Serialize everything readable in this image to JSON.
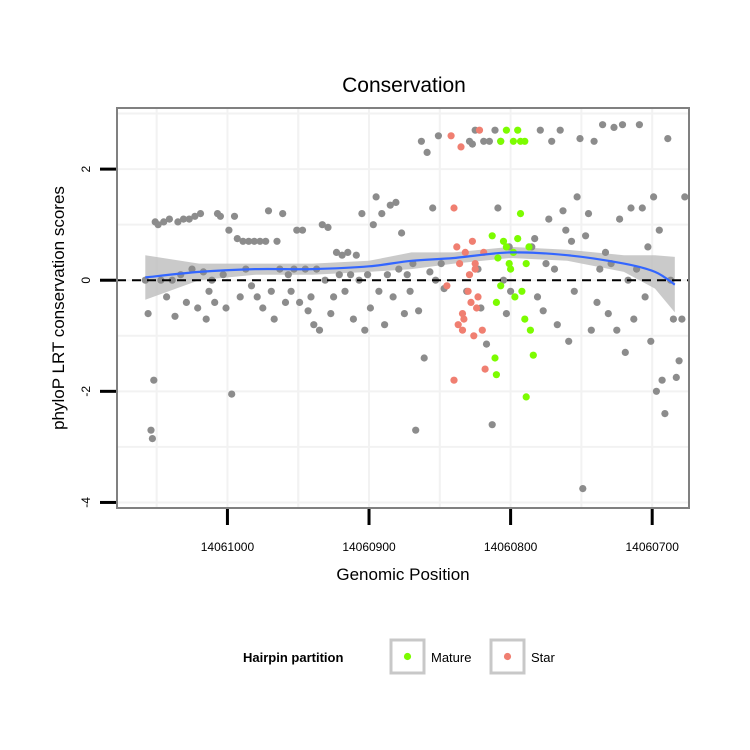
{
  "chart_data": {
    "type": "scatter",
    "title": "Conservation",
    "xlabel": "Genomic Position",
    "ylabel": "phyloP LRT conservation scores",
    "x_reversed": true,
    "xlim": [
      14061078,
      14060674
    ],
    "ylim": [
      -4.1,
      3.1
    ],
    "x_ticks": [
      14061000,
      14060900,
      14060800,
      14060700
    ],
    "y_ticks": [
      -4,
      -2,
      0,
      2
    ],
    "reference_line_y": 0,
    "legend": {
      "title": "Hairpin partition",
      "entries": [
        {
          "label": "Mature",
          "color": "#7cfc00"
        },
        {
          "label": "Star",
          "color": "#f07f71"
        }
      ]
    },
    "colors": {
      "other": "#8c8c8c",
      "Mature": "#7cfc00",
      "Star": "#f07f71",
      "smooth": "#3366ff",
      "ribbon": "#bdbdbd",
      "panel_border": "#808080"
    },
    "series": [
      {
        "name": "Mature",
        "points": [
          [
            14060813,
            0.8
          ],
          [
            14060810,
            -0.4
          ],
          [
            14060809,
            0.4
          ],
          [
            14060807,
            -0.1
          ],
          [
            14060805,
            0.7
          ],
          [
            14060803,
            0.6
          ],
          [
            14060801,
            0.3
          ],
          [
            14060800,
            0.2
          ],
          [
            14060798,
            0.5
          ],
          [
            14060797,
            -0.3
          ],
          [
            14060795,
            0.75
          ],
          [
            14060793,
            1.2
          ],
          [
            14060792,
            -0.2
          ],
          [
            14060790,
            -0.7
          ],
          [
            14060789,
            0.3
          ],
          [
            14060787,
            0.6
          ],
          [
            14060786,
            -0.9
          ],
          [
            14060784,
            -1.35
          ],
          [
            14060811,
            -1.4
          ],
          [
            14060810,
            -1.7
          ],
          [
            14060789,
            -2.1
          ],
          [
            14060803,
            2.7
          ],
          [
            14060798,
            2.5
          ],
          [
            14060795,
            2.7
          ],
          [
            14060793,
            2.5
          ],
          [
            14060807,
            2.5
          ],
          [
            14060790,
            2.5
          ]
        ]
      },
      {
        "name": "Star",
        "points": [
          [
            14060842,
            2.6
          ],
          [
            14060840,
            1.3
          ],
          [
            14060838,
            0.6
          ],
          [
            14060836,
            0.3
          ],
          [
            14060835,
            2.4
          ],
          [
            14060834,
            -0.9
          ],
          [
            14060833,
            -0.7
          ],
          [
            14060832,
            0.5
          ],
          [
            14060830,
            -0.2
          ],
          [
            14060829,
            0.1
          ],
          [
            14060828,
            -0.4
          ],
          [
            14060827,
            0.7
          ],
          [
            14060826,
            -1.0
          ],
          [
            14060825,
            0.3
          ],
          [
            14060824,
            -0.5
          ],
          [
            14060823,
            -0.3
          ],
          [
            14060822,
            2.7
          ],
          [
            14060820,
            -0.9
          ],
          [
            14060819,
            0.5
          ],
          [
            14060818,
            -1.6
          ],
          [
            14060840,
            -1.8
          ],
          [
            14060845,
            -0.1
          ],
          [
            14060834,
            -0.6
          ],
          [
            14060837,
            -0.8
          ],
          [
            14060825,
            0.2
          ]
        ]
      },
      {
        "name": "Other",
        "points": [
          [
            14061058,
            0.0
          ],
          [
            14061056,
            -0.6
          ],
          [
            14061054,
            -2.7
          ],
          [
            14061053,
            -2.85
          ],
          [
            14061052,
            -1.8
          ],
          [
            14061051,
            1.05
          ],
          [
            14061049,
            1.0
          ],
          [
            14061047,
            0.0
          ],
          [
            14061045,
            1.05
          ],
          [
            14061043,
            -0.3
          ],
          [
            14061041,
            1.1
          ],
          [
            14061039,
            0.0
          ],
          [
            14061037,
            -0.65
          ],
          [
            14061035,
            1.05
          ],
          [
            14061033,
            0.1
          ],
          [
            14061031,
            1.1
          ],
          [
            14061029,
            -0.4
          ],
          [
            14061027,
            1.1
          ],
          [
            14061025,
            0.2
          ],
          [
            14061023,
            1.15
          ],
          [
            14061021,
            -0.5
          ],
          [
            14061019,
            1.2
          ],
          [
            14061017,
            0.15
          ],
          [
            14061015,
            -0.7
          ],
          [
            14061013,
            -0.2
          ],
          [
            14061011,
            0.0
          ],
          [
            14061009,
            -0.4
          ],
          [
            14061007,
            1.2
          ],
          [
            14061005,
            1.15
          ],
          [
            14061003,
            0.1
          ],
          [
            14061001,
            -0.5
          ],
          [
            14060999,
            0.9
          ],
          [
            14060997,
            -2.05
          ],
          [
            14060995,
            1.15
          ],
          [
            14060993,
            0.75
          ],
          [
            14060991,
            -0.3
          ],
          [
            14060989,
            0.7
          ],
          [
            14060987,
            0.2
          ],
          [
            14060985,
            0.7
          ],
          [
            14060983,
            -0.1
          ],
          [
            14060981,
            0.7
          ],
          [
            14060979,
            -0.3
          ],
          [
            14060977,
            0.7
          ],
          [
            14060975,
            -0.5
          ],
          [
            14060973,
            0.7
          ],
          [
            14060971,
            1.25
          ],
          [
            14060969,
            -0.2
          ],
          [
            14060967,
            -0.7
          ],
          [
            14060965,
            0.7
          ],
          [
            14060963,
            0.2
          ],
          [
            14060961,
            1.2
          ],
          [
            14060959,
            -0.4
          ],
          [
            14060957,
            0.1
          ],
          [
            14060955,
            -0.2
          ],
          [
            14060953,
            0.2
          ],
          [
            14060951,
            0.9
          ],
          [
            14060949,
            -0.4
          ],
          [
            14060947,
            0.9
          ],
          [
            14060945,
            0.2
          ],
          [
            14060943,
            -0.55
          ],
          [
            14060941,
            -0.3
          ],
          [
            14060939,
            -0.8
          ],
          [
            14060937,
            0.2
          ],
          [
            14060935,
            -0.9
          ],
          [
            14060933,
            1.0
          ],
          [
            14060931,
            0.0
          ],
          [
            14060929,
            0.95
          ],
          [
            14060927,
            -0.6
          ],
          [
            14060925,
            -0.3
          ],
          [
            14060923,
            0.5
          ],
          [
            14060921,
            0.1
          ],
          [
            14060919,
            0.45
          ],
          [
            14060917,
            -0.2
          ],
          [
            14060915,
            0.5
          ],
          [
            14060913,
            0.1
          ],
          [
            14060911,
            -0.7
          ],
          [
            14060909,
            0.45
          ],
          [
            14060907,
            0.0
          ],
          [
            14060905,
            1.2
          ],
          [
            14060903,
            -0.9
          ],
          [
            14060901,
            0.1
          ],
          [
            14060899,
            -0.5
          ],
          [
            14060897,
            1.0
          ],
          [
            14060895,
            1.5
          ],
          [
            14060893,
            -0.2
          ],
          [
            14060891,
            1.2
          ],
          [
            14060889,
            -0.8
          ],
          [
            14060887,
            0.1
          ],
          [
            14060885,
            1.35
          ],
          [
            14060883,
            -0.3
          ],
          [
            14060881,
            1.4
          ],
          [
            14060879,
            0.2
          ],
          [
            14060877,
            0.85
          ],
          [
            14060875,
            -0.6
          ],
          [
            14060873,
            0.1
          ],
          [
            14060871,
            -0.2
          ],
          [
            14060869,
            0.3
          ],
          [
            14060867,
            -2.7
          ],
          [
            14060865,
            -0.55
          ],
          [
            14060863,
            2.5
          ],
          [
            14060861,
            -1.4
          ],
          [
            14060859,
            2.3
          ],
          [
            14060857,
            0.15
          ],
          [
            14060855,
            1.3
          ],
          [
            14060853,
            0.0
          ],
          [
            14060851,
            2.6
          ],
          [
            14060849,
            0.3
          ],
          [
            14060847,
            -0.15
          ],
          [
            14060831,
            -0.2
          ],
          [
            14060829,
            2.5
          ],
          [
            14060827,
            2.45
          ],
          [
            14060825,
            2.7
          ],
          [
            14060823,
            0.2
          ],
          [
            14060821,
            -0.5
          ],
          [
            14060819,
            2.5
          ],
          [
            14060817,
            -1.15
          ],
          [
            14060815,
            2.5
          ],
          [
            14060813,
            -2.6
          ],
          [
            14060811,
            2.7
          ],
          [
            14060809,
            1.3
          ],
          [
            14060807,
            2.5
          ],
          [
            14060805,
            0.0
          ],
          [
            14060803,
            -0.6
          ],
          [
            14060801,
            0.6
          ],
          [
            14060800,
            -0.2
          ],
          [
            14060785,
            0.6
          ],
          [
            14060783,
            0.75
          ],
          [
            14060781,
            -0.3
          ],
          [
            14060779,
            2.7
          ],
          [
            14060777,
            -0.55
          ],
          [
            14060775,
            0.3
          ],
          [
            14060773,
            1.1
          ],
          [
            14060771,
            2.5
          ],
          [
            14060769,
            0.2
          ],
          [
            14060767,
            -0.8
          ],
          [
            14060765,
            2.7
          ],
          [
            14060763,
            1.25
          ],
          [
            14060761,
            0.9
          ],
          [
            14060759,
            -1.1
          ],
          [
            14060757,
            0.7
          ],
          [
            14060755,
            -0.2
          ],
          [
            14060753,
            1.5
          ],
          [
            14060751,
            2.55
          ],
          [
            14060749,
            -3.75
          ],
          [
            14060747,
            0.8
          ],
          [
            14060745,
            1.2
          ],
          [
            14060743,
            -0.9
          ],
          [
            14060741,
            2.5
          ],
          [
            14060739,
            -0.4
          ],
          [
            14060737,
            0.2
          ],
          [
            14060735,
            2.8
          ],
          [
            14060733,
            0.5
          ],
          [
            14060731,
            -0.6
          ],
          [
            14060729,
            0.3
          ],
          [
            14060727,
            2.75
          ],
          [
            14060725,
            -0.9
          ],
          [
            14060723,
            1.1
          ],
          [
            14060721,
            2.8
          ],
          [
            14060719,
            -1.3
          ],
          [
            14060717,
            0.0
          ],
          [
            14060715,
            1.3
          ],
          [
            14060713,
            -0.7
          ],
          [
            14060711,
            0.2
          ],
          [
            14060709,
            2.8
          ],
          [
            14060707,
            1.3
          ],
          [
            14060705,
            -0.3
          ],
          [
            14060703,
            0.6
          ],
          [
            14060701,
            -1.1
          ],
          [
            14060699,
            1.5
          ],
          [
            14060697,
            -2.0
          ],
          [
            14060695,
            0.9
          ],
          [
            14060693,
            -1.8
          ],
          [
            14060691,
            -2.4
          ],
          [
            14060689,
            2.55
          ],
          [
            14060687,
            0.0
          ],
          [
            14060685,
            -0.7
          ],
          [
            14060683,
            -1.75
          ],
          [
            14060681,
            -1.45
          ],
          [
            14060679,
            -0.7
          ],
          [
            14060677,
            1.5
          ]
        ]
      }
    ],
    "smooth_line": [
      [
        14061058,
        0.05
      ],
      [
        14061020,
        0.15
      ],
      [
        14060980,
        0.2
      ],
      [
        14060940,
        0.2
      ],
      [
        14060900,
        0.25
      ],
      [
        14060870,
        0.35
      ],
      [
        14060840,
        0.4
      ],
      [
        14060800,
        0.5
      ],
      [
        14060760,
        0.45
      ],
      [
        14060720,
        0.3
      ],
      [
        14060698,
        0.15
      ],
      [
        14060684,
        -0.08
      ]
    ],
    "smooth_ribbon_halfwidth": [
      0.4,
      0.15,
      0.1,
      0.1,
      0.1,
      0.15,
      0.1,
      0.1,
      0.1,
      0.15,
      0.3,
      0.5
    ]
  }
}
